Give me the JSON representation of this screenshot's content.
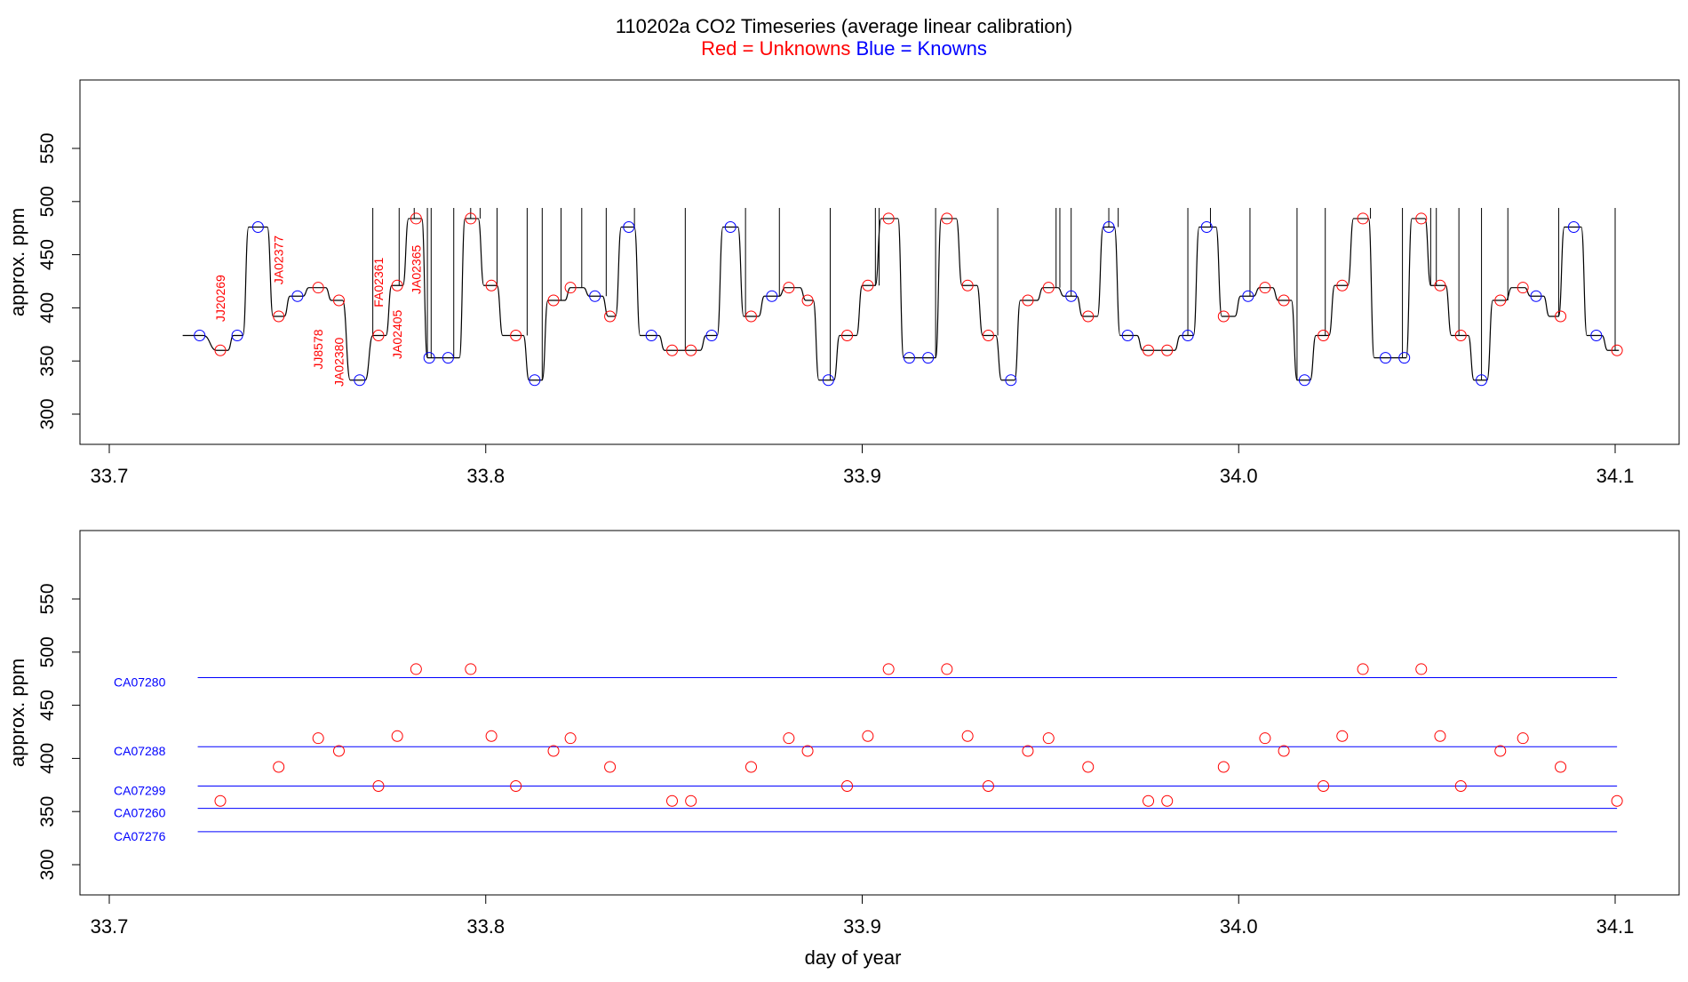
{
  "colors": {
    "unknowns": "#ff0000",
    "knowns": "#0000ff",
    "trace": "#000000",
    "reference_lines": "#0000ff"
  },
  "chart_data": [
    {
      "type": "line",
      "title": "110202a   CO2 Timeseries (average linear calibration)",
      "subtitle_parts": [
        {
          "text": "Red = Unknowns",
          "color": "#ff0000"
        },
        {
          "text": "Blue = Knowns",
          "color": "#0000ff"
        }
      ],
      "xlabel": "",
      "ylabel": "approx. ppm",
      "xlim": [
        33.7,
        34.1
      ],
      "ylim": [
        300,
        550
      ],
      "x_ticks": [
        "33.7",
        "33.8",
        "33.9",
        "34.0",
        "34.1"
      ],
      "y_ticks": [
        "300",
        "350",
        "400",
        "450",
        "500",
        "550"
      ],
      "trace": [
        [
          33.7195,
          374
        ],
        [
          33.725,
          374
        ],
        [
          33.7285,
          360
        ],
        [
          33.7315,
          360
        ],
        [
          33.733,
          374
        ],
        [
          33.7355,
          374
        ],
        [
          33.737,
          476
        ],
        [
          33.742,
          476
        ],
        [
          33.7435,
          392
        ],
        [
          33.7465,
          392
        ],
        [
          33.748,
          411
        ],
        [
          33.7515,
          411
        ],
        [
          33.753,
          419
        ],
        [
          33.7575,
          419
        ],
        [
          33.759,
          407
        ],
        [
          33.762,
          407
        ],
        [
          33.764,
          332
        ],
        [
          33.768,
          332
        ],
        [
          33.77,
          374
        ],
        [
          33.7735,
          374
        ],
        [
          33.775,
          421
        ],
        [
          33.778,
          421
        ],
        [
          33.7795,
          484
        ],
        [
          33.783,
          484
        ],
        [
          33.7845,
          353
        ],
        [
          33.793,
          353
        ],
        [
          33.7945,
          484
        ],
        [
          33.798,
          484
        ],
        [
          33.7995,
          421
        ],
        [
          33.803,
          421
        ],
        [
          33.8045,
          374
        ],
        [
          33.81,
          374
        ],
        [
          33.8115,
          332
        ],
        [
          33.815,
          332
        ],
        [
          33.8165,
          407
        ],
        [
          33.821,
          407
        ],
        [
          33.8225,
          419
        ],
        [
          33.826,
          419
        ],
        [
          33.8275,
          411
        ],
        [
          33.831,
          411
        ],
        [
          33.8325,
          392
        ],
        [
          33.8345,
          392
        ],
        [
          33.836,
          476
        ],
        [
          33.8395,
          476
        ],
        [
          33.841,
          374
        ],
        [
          33.846,
          374
        ],
        [
          33.8475,
          360
        ],
        [
          33.857,
          360
        ],
        [
          33.8585,
          374
        ],
        [
          33.8615,
          374
        ],
        [
          33.863,
          476
        ],
        [
          33.867,
          476
        ],
        [
          33.8685,
          392
        ],
        [
          33.8725,
          392
        ],
        [
          33.874,
          411
        ],
        [
          33.878,
          411
        ],
        [
          33.8795,
          419
        ],
        [
          33.8835,
          419
        ],
        [
          33.885,
          407
        ],
        [
          33.887,
          407
        ],
        [
          33.8885,
          332
        ],
        [
          33.8925,
          332
        ],
        [
          33.894,
          374
        ],
        [
          33.8985,
          374
        ],
        [
          33.9,
          421
        ],
        [
          33.9035,
          421
        ],
        [
          33.905,
          484
        ],
        [
          33.9095,
          484
        ],
        [
          33.911,
          353
        ],
        [
          33.9195,
          353
        ],
        [
          33.921,
          484
        ],
        [
          33.925,
          484
        ],
        [
          33.9265,
          421
        ],
        [
          33.9305,
          421
        ],
        [
          33.932,
          374
        ],
        [
          33.9355,
          374
        ],
        [
          33.937,
          332
        ],
        [
          33.9405,
          332
        ],
        [
          33.942,
          407
        ],
        [
          33.9465,
          407
        ],
        [
          33.948,
          419
        ],
        [
          33.952,
          419
        ],
        [
          33.9535,
          411
        ],
        [
          33.957,
          411
        ],
        [
          33.9585,
          392
        ],
        [
          33.9625,
          392
        ],
        [
          33.964,
          476
        ],
        [
          33.967,
          476
        ],
        [
          33.9685,
          374
        ],
        [
          33.973,
          374
        ],
        [
          33.9745,
          360
        ],
        [
          33.983,
          360
        ],
        [
          33.9845,
          374
        ],
        [
          33.988,
          374
        ],
        [
          33.9895,
          476
        ],
        [
          33.994,
          476
        ],
        [
          33.9955,
          392
        ],
        [
          33.999,
          392
        ],
        [
          34.0005,
          411
        ],
        [
          34.004,
          411
        ],
        [
          34.0055,
          419
        ],
        [
          34.009,
          419
        ],
        [
          34.0105,
          407
        ],
        [
          34.014,
          407
        ],
        [
          34.0155,
          332
        ],
        [
          34.019,
          332
        ],
        [
          34.0205,
          374
        ],
        [
          34.024,
          374
        ],
        [
          34.0255,
          421
        ],
        [
          34.029,
          421
        ],
        [
          34.0305,
          484
        ],
        [
          34.0345,
          484
        ],
        [
          34.036,
          353
        ],
        [
          34.0445,
          353
        ],
        [
          34.046,
          484
        ],
        [
          34.0495,
          484
        ],
        [
          34.051,
          421
        ],
        [
          34.055,
          421
        ],
        [
          34.0565,
          374
        ],
        [
          34.061,
          374
        ],
        [
          34.0625,
          332
        ],
        [
          34.066,
          332
        ],
        [
          34.0675,
          407
        ],
        [
          34.071,
          407
        ],
        [
          34.0725,
          419
        ],
        [
          34.076,
          419
        ],
        [
          34.0775,
          411
        ],
        [
          34.081,
          411
        ],
        [
          34.0825,
          392
        ],
        [
          34.085,
          392
        ],
        [
          34.0865,
          476
        ],
        [
          34.091,
          476
        ],
        [
          34.0925,
          374
        ],
        [
          34.0965,
          374
        ],
        [
          34.098,
          360
        ],
        [
          34.101,
          360
        ]
      ],
      "spikes": [
        33.77,
        33.777,
        33.781,
        33.7845,
        33.7855,
        33.7915,
        33.796,
        33.7985,
        33.803,
        33.811,
        33.815,
        33.82,
        33.8255,
        33.832,
        33.8395,
        33.853,
        33.869,
        33.878,
        33.8915,
        33.9035,
        33.9045,
        33.9195,
        33.936,
        33.9515,
        33.9525,
        33.9555,
        33.9655,
        33.968,
        33.9865,
        33.9925,
        34.003,
        34.0155,
        34.023,
        34.035,
        34.0435,
        34.051,
        34.0525,
        34.0585,
        34.0645,
        34.0715,
        34.085,
        34.1
      ],
      "spike_top": 494,
      "knowns": [
        [
          33.724,
          374
        ],
        [
          33.734,
          374
        ],
        [
          33.7395,
          476
        ],
        [
          33.75,
          411
        ],
        [
          33.7665,
          332
        ],
        [
          33.785,
          353
        ],
        [
          33.79,
          353
        ],
        [
          33.813,
          332
        ],
        [
          33.829,
          411
        ],
        [
          33.838,
          476
        ],
        [
          33.844,
          374
        ],
        [
          33.86,
          374
        ],
        [
          33.865,
          476
        ],
        [
          33.876,
          411
        ],
        [
          33.891,
          332
        ],
        [
          33.9125,
          353
        ],
        [
          33.9175,
          353
        ],
        [
          33.9395,
          332
        ],
        [
          33.9555,
          411
        ],
        [
          33.9655,
          476
        ],
        [
          33.9705,
          374
        ],
        [
          33.9865,
          374
        ],
        [
          33.9915,
          476
        ],
        [
          34.0025,
          411
        ],
        [
          34.0175,
          332
        ],
        [
          34.039,
          353
        ],
        [
          34.044,
          353
        ],
        [
          34.0645,
          332
        ],
        [
          34.079,
          411
        ],
        [
          34.089,
          476
        ],
        [
          34.095,
          374
        ]
      ],
      "unknowns": [
        [
          33.7295,
          360
        ],
        [
          33.745,
          392
        ],
        [
          33.7555,
          419
        ],
        [
          33.761,
          407
        ],
        [
          33.7715,
          374
        ],
        [
          33.7765,
          421
        ],
        [
          33.7815,
          484
        ],
        [
          33.796,
          484
        ],
        [
          33.8015,
          421
        ],
        [
          33.808,
          374
        ],
        [
          33.818,
          407
        ],
        [
          33.8225,
          419
        ],
        [
          33.833,
          392
        ],
        [
          33.8495,
          360
        ],
        [
          33.8545,
          360
        ],
        [
          33.8705,
          392
        ],
        [
          33.8805,
          419
        ],
        [
          33.8855,
          407
        ],
        [
          33.896,
          374
        ],
        [
          33.9015,
          421
        ],
        [
          33.907,
          484
        ],
        [
          33.9225,
          484
        ],
        [
          33.928,
          421
        ],
        [
          33.9335,
          374
        ],
        [
          33.944,
          407
        ],
        [
          33.9495,
          419
        ],
        [
          33.96,
          392
        ],
        [
          33.976,
          360
        ],
        [
          33.981,
          360
        ],
        [
          33.996,
          392
        ],
        [
          34.007,
          419
        ],
        [
          34.012,
          407
        ],
        [
          34.0225,
          374
        ],
        [
          34.0275,
          421
        ],
        [
          34.033,
          484
        ],
        [
          34.0485,
          484
        ],
        [
          34.0535,
          421
        ],
        [
          34.059,
          374
        ],
        [
          34.0695,
          407
        ],
        [
          34.0755,
          419
        ],
        [
          34.0855,
          392
        ],
        [
          34.1005,
          360
        ]
      ],
      "sample_labels": [
        {
          "text": "JJ20269",
          "x": 33.7295,
          "y": 409
        },
        {
          "text": "JA02377",
          "x": 33.745,
          "y": 445
        },
        {
          "text": "JJ8578",
          "x": 33.7555,
          "y": 361
        },
        {
          "text": "JA02380",
          "x": 33.761,
          "y": 349
        },
        {
          "text": "FA02361",
          "x": 33.7715,
          "y": 424
        },
        {
          "text": "JA02405",
          "x": 33.7765,
          "y": 375
        },
        {
          "text": "JA02365",
          "x": 33.7815,
          "y": 436
        }
      ]
    },
    {
      "type": "scatter",
      "title": "",
      "xlabel": "day of year",
      "ylabel": "approx. ppm",
      "xlim": [
        33.7,
        34.1
      ],
      "ylim": [
        300,
        550
      ],
      "x_ticks": [
        "33.7",
        "33.8",
        "33.9",
        "34.0",
        "34.1"
      ],
      "y_ticks": [
        "300",
        "350",
        "400",
        "450",
        "500",
        "550"
      ],
      "reference_lines": [
        {
          "name": "CA07280",
          "value": 476,
          "x_range": [
            33.7235,
            34.1005
          ]
        },
        {
          "name": "CA07288",
          "value": 411,
          "x_range": [
            33.7235,
            34.1005
          ]
        },
        {
          "name": "CA07299",
          "value": 374,
          "x_range": [
            33.7235,
            34.1005
          ]
        },
        {
          "name": "CA07260",
          "value": 353,
          "x_range": [
            33.7235,
            34.1005
          ]
        },
        {
          "name": "CA07276",
          "value": 331,
          "x_range": [
            33.7235,
            34.1005
          ]
        }
      ],
      "unknowns": [
        [
          33.7295,
          360
        ],
        [
          33.745,
          392
        ],
        [
          33.7555,
          419
        ],
        [
          33.761,
          407
        ],
        [
          33.7715,
          374
        ],
        [
          33.7765,
          421
        ],
        [
          33.7815,
          484
        ],
        [
          33.796,
          484
        ],
        [
          33.8015,
          421
        ],
        [
          33.808,
          374
        ],
        [
          33.818,
          407
        ],
        [
          33.8225,
          419
        ],
        [
          33.833,
          392
        ],
        [
          33.8495,
          360
        ],
        [
          33.8545,
          360
        ],
        [
          33.8705,
          392
        ],
        [
          33.8805,
          419
        ],
        [
          33.8855,
          407
        ],
        [
          33.896,
          374
        ],
        [
          33.9015,
          421
        ],
        [
          33.907,
          484
        ],
        [
          33.9225,
          484
        ],
        [
          33.928,
          421
        ],
        [
          33.9335,
          374
        ],
        [
          33.944,
          407
        ],
        [
          33.9495,
          419
        ],
        [
          33.96,
          392
        ],
        [
          33.976,
          360
        ],
        [
          33.981,
          360
        ],
        [
          33.996,
          392
        ],
        [
          34.007,
          419
        ],
        [
          34.012,
          407
        ],
        [
          34.0225,
          374
        ],
        [
          34.0275,
          421
        ],
        [
          34.033,
          484
        ],
        [
          34.0485,
          484
        ],
        [
          34.0535,
          421
        ],
        [
          34.059,
          374
        ],
        [
          34.0695,
          407
        ],
        [
          34.0755,
          419
        ],
        [
          34.0855,
          392
        ],
        [
          34.1005,
          360
        ]
      ]
    }
  ]
}
